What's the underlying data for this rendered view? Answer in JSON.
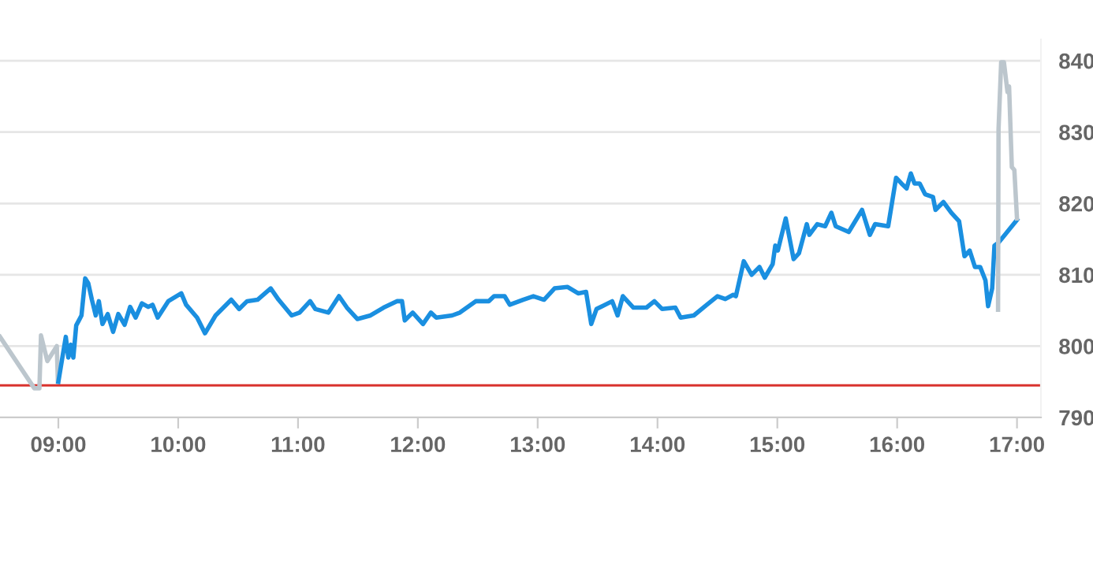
{
  "chart_data": {
    "type": "line",
    "xlim": [
      8.513,
      17.2
    ],
    "ylim": [
      790,
      843
    ],
    "xticks": [
      {
        "value": 9,
        "label": "09:00"
      },
      {
        "value": 10,
        "label": "10:00"
      },
      {
        "value": 11,
        "label": "11:00"
      },
      {
        "value": 12,
        "label": "12:00"
      },
      {
        "value": 13,
        "label": "13:00"
      },
      {
        "value": 14,
        "label": "14:00"
      },
      {
        "value": 15,
        "label": "15:00"
      },
      {
        "value": 16,
        "label": "16:00"
      },
      {
        "value": 17,
        "label": "17:00"
      }
    ],
    "yticks": [
      790,
      800,
      810,
      820,
      830,
      840
    ],
    "grid": "y",
    "legend": false,
    "marker": "none",
    "line_style": "solid",
    "ref_lines": [
      {
        "axis": "y",
        "value": 794.5,
        "label": null,
        "color": "#d9332e"
      }
    ],
    "series": [
      {
        "color": "#bcc6cd",
        "x": [
          8.513,
          8.799,
          8.842,
          8.855,
          8.908,
          8.987,
          8.996
        ],
        "values": [
          801.3,
          794.1,
          794.1,
          801.5,
          797.9,
          800.0,
          795.0
        ]
      },
      {
        "color": "#1a8fe0",
        "x": [
          9.0,
          9.062,
          9.083,
          9.105,
          9.125,
          9.149,
          9.171,
          9.193,
          9.224,
          9.25,
          9.28,
          9.312,
          9.338,
          9.368,
          9.412,
          9.457,
          9.5,
          9.553,
          9.599,
          9.645,
          9.697,
          9.75,
          9.786,
          9.829,
          9.917,
          10.026,
          10.066,
          10.158,
          10.224,
          10.312,
          10.443,
          10.509,
          10.575,
          10.662,
          10.772,
          10.838,
          10.947,
          11.013,
          11.101,
          11.145,
          11.254,
          11.342,
          11.408,
          11.496,
          11.605,
          11.714,
          11.825,
          11.868,
          11.891,
          11.957,
          12.043,
          12.109,
          12.154,
          12.286,
          12.351,
          12.483,
          12.592,
          12.636,
          12.724,
          12.767,
          12.878,
          12.964,
          13.053,
          13.141,
          13.25,
          13.338,
          13.404,
          13.447,
          13.491,
          13.622,
          13.667,
          13.711,
          13.799,
          13.908,
          13.974,
          14.039,
          14.149,
          14.193,
          14.303,
          14.412,
          14.5,
          14.566,
          14.632,
          14.654,
          14.72,
          14.786,
          14.851,
          14.895,
          14.961,
          14.983,
          15.004,
          15.07,
          15.136,
          15.18,
          15.246,
          15.267,
          15.333,
          15.399,
          15.451,
          15.487,
          15.596,
          15.707,
          15.772,
          15.816,
          15.925,
          15.991,
          16.036,
          16.079,
          16.114,
          16.145,
          16.188,
          16.233,
          16.299,
          16.32,
          16.386,
          16.452,
          16.517,
          16.562,
          16.605,
          16.649,
          16.693,
          16.737,
          16.759,
          16.793,
          16.812,
          16.846,
          17.0
        ],
        "values": [
          795.0,
          801.3,
          798.4,
          800.2,
          798.4,
          802.9,
          803.6,
          804.3,
          809.5,
          808.8,
          806.5,
          804.3,
          806.3,
          803.1,
          804.5,
          802.0,
          804.5,
          803.0,
          805.5,
          804.0,
          806.0,
          805.5,
          805.8,
          804.0,
          806.3,
          807.4,
          805.8,
          804.0,
          801.8,
          804.3,
          806.5,
          805.2,
          806.3,
          806.5,
          808.1,
          806.5,
          804.3,
          804.7,
          806.3,
          805.2,
          804.7,
          807.0,
          805.4,
          803.8,
          804.3,
          805.4,
          806.3,
          806.3,
          803.6,
          804.7,
          803.1,
          804.7,
          804.0,
          804.3,
          804.7,
          806.3,
          806.3,
          807.0,
          807.0,
          805.8,
          806.5,
          807.0,
          806.5,
          808.1,
          808.3,
          807.4,
          807.6,
          803.1,
          805.2,
          806.3,
          804.3,
          807.0,
          805.4,
          805.4,
          806.3,
          805.2,
          805.4,
          804.0,
          804.3,
          805.8,
          807.0,
          806.6,
          807.2,
          807.0,
          811.9,
          810.0,
          811.1,
          809.6,
          811.5,
          814.1,
          813.4,
          817.9,
          812.2,
          813.0,
          817.1,
          815.6,
          817.1,
          816.8,
          818.7,
          816.8,
          816.0,
          819.1,
          815.6,
          817.1,
          816.8,
          823.6,
          822.8,
          822.1,
          824.2,
          822.8,
          822.8,
          821.3,
          820.9,
          819.1,
          820.2,
          818.7,
          817.5,
          812.6,
          813.4,
          811.1,
          811.1,
          809.2,
          805.6,
          808.1,
          814.1,
          814.5,
          817.7
        ]
      },
      {
        "color": "#bcc6cd",
        "x": [
          16.842,
          16.846,
          16.868,
          16.891,
          16.921,
          16.934,
          16.957,
          16.978,
          17.0
        ],
        "values": [
          805.1,
          830.4,
          839.8,
          839.8,
          835.6,
          836.4,
          825.1,
          824.7,
          817.9
        ]
      }
    ]
  }
}
